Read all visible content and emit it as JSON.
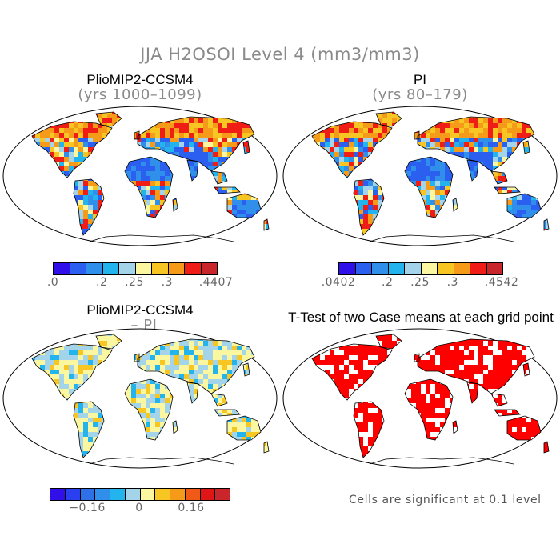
{
  "figure": {
    "title": "JJA H2OSOI Level 4 (mm3/mm3)"
  },
  "panels": [
    {
      "title": "PlioMIP2-CCSM4",
      "subtitle": "(yrs 1000–1099)",
      "style": "abs_a"
    },
    {
      "title": "PI",
      "subtitle": "(yrs 80–179)",
      "style": "abs_b"
    },
    {
      "title": "PlioMIP2-CCSM4",
      "subtitle": "– PI",
      "style": "diff"
    },
    {
      "title": "T-Test of two Case means at each grid point",
      "subtitle": "",
      "style": "ttest"
    }
  ],
  "colorbars": [
    {
      "colors": [
        "#3010e8",
        "#2a5ff0",
        "#2f8fea",
        "#23b4ee",
        "#a3d4ea",
        "#fbf7a0",
        "#f8c623",
        "#f69a1a",
        "#f01d16",
        "#c8262a"
      ],
      "tick_labels": [
        ".0",
        ".2",
        ".25",
        ".3",
        ".4407"
      ]
    },
    {
      "colors": [
        "#3010e8",
        "#2a5ff0",
        "#2f8fea",
        "#23b4ee",
        "#a3d4ea",
        "#fbf7a0",
        "#f8c623",
        "#f69a1a",
        "#f01d16",
        "#c8262a"
      ],
      "tick_labels": [
        ".0402",
        ".2",
        ".25",
        ".3",
        ".4542"
      ]
    },
    {
      "colors": [
        "#3010e8",
        "#2a3ff0",
        "#2f6fe8",
        "#2f8fea",
        "#23b4ee",
        "#a3d4ea",
        "#fbf7a0",
        "#f8c623",
        "#f69a1a",
        "#f05a16",
        "#e01616",
        "#c8262a"
      ],
      "tick_labels": [
        "−0.16",
        "0",
        "0.16"
      ]
    }
  ],
  "significance_note": "Cells are significant at 0.1 level"
}
